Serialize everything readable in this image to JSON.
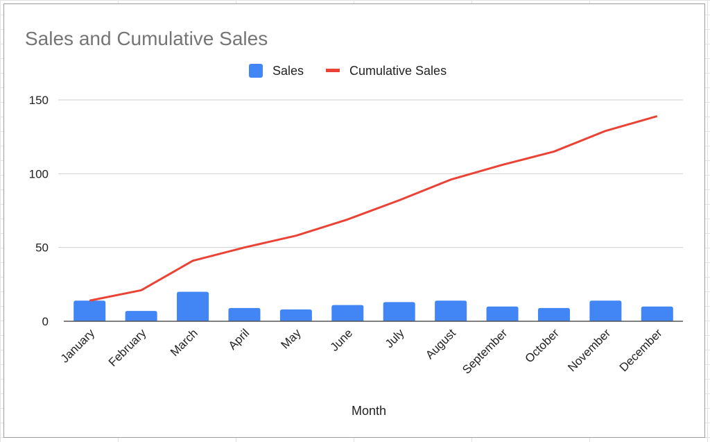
{
  "chart_data": {
    "type": "bar+line",
    "title": "Sales and Cumulative Sales",
    "xlabel": "Month",
    "ylabel": "",
    "ylim": [
      0,
      150
    ],
    "yticks": [
      0,
      50,
      100,
      150
    ],
    "grid": true,
    "legend": "top",
    "categories": [
      "January",
      "February",
      "March",
      "April",
      "May",
      "June",
      "July",
      "August",
      "September",
      "October",
      "November",
      "December"
    ],
    "series": [
      {
        "name": "Sales",
        "type": "bar",
        "color": "#4285f4",
        "values": [
          14,
          7,
          20,
          9,
          8,
          11,
          13,
          14,
          10,
          9,
          14,
          10
        ]
      },
      {
        "name": "Cumulative Sales",
        "type": "line",
        "color": "#ea4335",
        "values": [
          14,
          21,
          41,
          50,
          58,
          69,
          82,
          96,
          106,
          115,
          129,
          139
        ]
      }
    ]
  }
}
